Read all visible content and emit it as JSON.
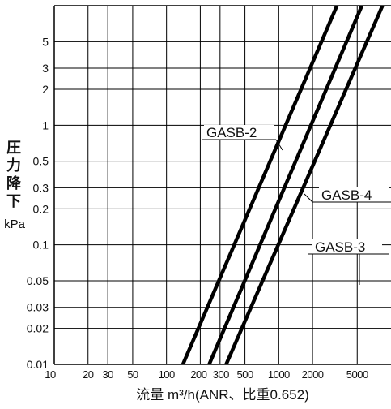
{
  "chart_data": {
    "type": "line",
    "x_scale": "log",
    "y_scale": "log",
    "xlim": [
      10,
      10000
    ],
    "ylim": [
      0.01,
      10
    ],
    "grid": true,
    "xlabel": "流量 m³/h(ANR、比重0.652)",
    "ylabel_chars": [
      "圧",
      "力",
      "降",
      "下"
    ],
    "yunit": "kPa",
    "x_ticks": [
      {
        "value": 10,
        "label": "10"
      },
      {
        "value": 20,
        "label": "20"
      },
      {
        "value": 30,
        "label": "30"
      },
      {
        "value": 50,
        "label": "50"
      },
      {
        "value": 100,
        "label": "100"
      },
      {
        "value": 200,
        "label": "200"
      },
      {
        "value": 300,
        "label": "300"
      },
      {
        "value": 500,
        "label": "500"
      },
      {
        "value": 1000,
        "label": "1000"
      },
      {
        "value": 2000,
        "label": "2000"
      },
      {
        "value": 5000,
        "label": "5000"
      }
    ],
    "y_ticks": [
      {
        "value": 0.01,
        "label": "0.01"
      },
      {
        "value": 0.02,
        "label": "0.02"
      },
      {
        "value": 0.03,
        "label": "0.03"
      },
      {
        "value": 0.05,
        "label": "0.05"
      },
      {
        "value": 0.1,
        "label": "0.1"
      },
      {
        "value": 0.2,
        "label": "0.2"
      },
      {
        "value": 0.3,
        "label": "0.3"
      },
      {
        "value": 0.5,
        "label": "0.5"
      },
      {
        "value": 1,
        "label": "1"
      },
      {
        "value": 2,
        "label": "2"
      },
      {
        "value": 3,
        "label": "3"
      },
      {
        "value": 5,
        "label": "5"
      }
    ],
    "series": [
      {
        "name": "GASB-2",
        "points": [
          [
            140,
            0.01
          ],
          [
            3300,
            10
          ]
        ]
      },
      {
        "name": "GASB-4",
        "points": [
          [
            240,
            0.01
          ],
          [
            5500,
            10
          ]
        ]
      },
      {
        "name": "GASB-3",
        "points": [
          [
            340,
            0.01
          ],
          [
            8400,
            10
          ]
        ]
      }
    ]
  }
}
